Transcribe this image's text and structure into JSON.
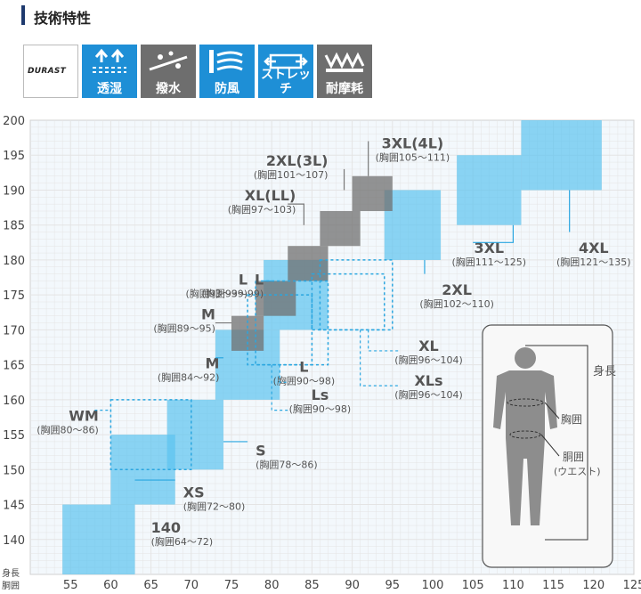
{
  "header": {
    "title": "技術特性"
  },
  "features": [
    {
      "label": "",
      "brand": "DURAST",
      "icon": "durast-logo",
      "color": "#ffffff"
    },
    {
      "label": "透湿",
      "icon": "moisture-permeable-icon",
      "color": "#1e8fd6"
    },
    {
      "label": "撥水",
      "icon": "water-repellent-icon",
      "color": "#6e6e6e"
    },
    {
      "label": "防風",
      "icon": "windproof-icon",
      "color": "#1e8fd6"
    },
    {
      "label": "ストレッチ",
      "icon": "stretch-icon",
      "color": "#1e8fd6"
    },
    {
      "label": "耐摩耗",
      "icon": "abrasion-resistant-icon",
      "color": "#6e6e6e"
    }
  ],
  "chart_data": {
    "type": "size-chart",
    "xlabel": "胴囲",
    "ylabel": "身長",
    "xlim": [
      50,
      125
    ],
    "ylim": [
      135,
      200
    ],
    "xticks": [
      55,
      60,
      65,
      70,
      75,
      80,
      85,
      90,
      95,
      100,
      105,
      110,
      115,
      120,
      125
    ],
    "yticks": [
      140,
      145,
      150,
      155,
      160,
      165,
      170,
      175,
      180,
      185,
      190,
      195,
      200
    ],
    "colors": {
      "mens": "#5bc3ef",
      "ladies": "#707070",
      "dashed": "#2aa6e0",
      "grid": "#e4e4e4",
      "plot_bg": "#f3f8fc"
    },
    "mens_sizes": [
      {
        "size": "140",
        "chest": "(胸囲64〜72)",
        "x": [
          54,
          63
        ],
        "y": [
          135,
          145
        ]
      },
      {
        "size": "XS",
        "chest": "(胸囲72〜80)",
        "x": [
          60,
          68
        ],
        "y": [
          145,
          155
        ]
      },
      {
        "size": "S",
        "chest": "(胸囲78〜86)",
        "x": [
          67,
          74
        ],
        "y": [
          150,
          160
        ]
      },
      {
        "size": "M",
        "chest": "(胸囲84〜92)",
        "x": [
          73,
          81
        ],
        "y": [
          160,
          170
        ]
      },
      {
        "size": "L",
        "chest": "(胸囲93〜99)",
        "x": [
          79,
          87
        ],
        "y": [
          170,
          180
        ]
      },
      {
        "size": "2XL",
        "chest": "(胸囲102〜110)",
        "x": [
          94,
          101
        ],
        "y": [
          180,
          190
        ]
      },
      {
        "size": "3XL",
        "chest": "(胸囲111〜125)",
        "x": [
          103,
          111
        ],
        "y": [
          185,
          195
        ]
      },
      {
        "size": "4XL",
        "chest": "(胸囲121〜135)",
        "x": [
          111,
          121
        ],
        "y": [
          190,
          200
        ]
      }
    ],
    "ladies_sizes": [
      {
        "size": "M",
        "chest": "(胸囲89〜95)",
        "x": [
          75,
          79
        ],
        "y": [
          167,
          172
        ]
      },
      {
        "size": "L",
        "chest": "(胸囲93〜99)",
        "x": [
          78,
          83
        ],
        "y": [
          172,
          177
        ]
      },
      {
        "size": "XL(LL)",
        "chest": "(胸囲97〜103)",
        "x": [
          82,
          87
        ],
        "y": [
          177,
          182
        ]
      },
      {
        "size": "2XL(3L)",
        "chest": "(胸囲101〜107)",
        "x": [
          86,
          91
        ],
        "y": [
          182,
          187
        ]
      },
      {
        "size": "3XL(4L)",
        "chest": "(胸囲105〜111)",
        "x": [
          90,
          95
        ],
        "y": [
          187,
          192
        ]
      }
    ],
    "dashed_sizes": [
      {
        "size": "WM",
        "chest": "(胸囲80〜86)",
        "x": [
          60,
          70
        ],
        "y": [
          150,
          160
        ]
      },
      {
        "size": "L",
        "chest": "(胸囲90〜98)",
        "x": [
          77,
          85
        ],
        "y": [
          165,
          175
        ]
      },
      {
        "size": "Ls",
        "chest": "(胸囲90〜98)",
        "x": [
          78,
          87
        ],
        "y": [
          165,
          177
        ]
      },
      {
        "size": "XL",
        "chest": "(胸囲96〜104)",
        "x": [
          85,
          94
        ],
        "y": [
          170,
          178
        ]
      },
      {
        "size": "XLs",
        "chest": "(胸囲96〜104)",
        "x": [
          86,
          95
        ],
        "y": [
          170,
          180
        ]
      }
    ],
    "legend_figure": {
      "height_label": "身長",
      "chest_label": "胸囲",
      "waist_label": "胴囲\n(ウエスト)"
    }
  }
}
